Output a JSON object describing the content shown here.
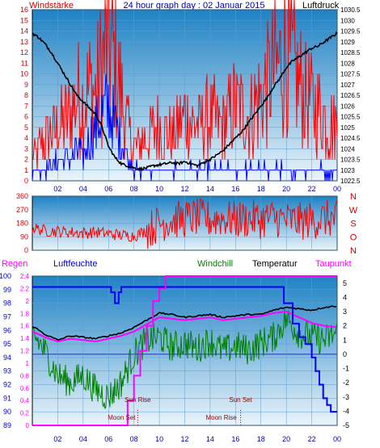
{
  "header": {
    "left_label": "Windstärke",
    "title": "24 hour graph day : 02 Januar 2015",
    "right_label": "Luftdruck"
  },
  "colors": {
    "background_top": "#1f82c4",
    "background_bottom": "#eaf4fb",
    "wind_speed": "#ff0000",
    "gust": "#0000ff",
    "pressure": "#000000",
    "wind_direction": "#ff0000",
    "humidity": "#0000ff",
    "rain": "#ff00ff",
    "temperature": "#000000",
    "windchill": "#008000",
    "dewpoint": "#ff00ff",
    "markers": "#990000"
  },
  "chart_data": [
    {
      "type": "line",
      "panel": "wind_pressure",
      "x_ticks": [
        "02",
        "04",
        "06",
        "08",
        "10",
        "12",
        "14",
        "16",
        "18",
        "20",
        "22",
        "00"
      ],
      "left_axis_label": "Windstärke",
      "left_ticks": [
        "0",
        "1",
        "2",
        "3",
        "4",
        "5",
        "6",
        "7",
        "8",
        "9",
        "10",
        "11",
        "12",
        "13",
        "14",
        "15",
        "16"
      ],
      "right_axis_label": "Luftdruck",
      "right_ticks": [
        "1022.5",
        "1023",
        "1023.5",
        "1024",
        "1024.5",
        "1025",
        "1025.5",
        "1026",
        "1026.5",
        "1027",
        "1027.5",
        "1028",
        "1028.5",
        "1029",
        "1029.5",
        "1030",
        "1030.5"
      ],
      "ylim_left": [
        0,
        16
      ],
      "ylim_right": [
        1022.5,
        1030.5
      ],
      "pressure_series": {
        "x": [
          0,
          0.5,
          1,
          1.5,
          2,
          2.5,
          3,
          3.5,
          4,
          4.5,
          5,
          5.5,
          6,
          6.5,
          7,
          7.5,
          8,
          8.5,
          9,
          9.5,
          10,
          10.5,
          11,
          11.5,
          12,
          12.5,
          13,
          13.5,
          14,
          14.5,
          15,
          15.5,
          16,
          16.5,
          17,
          17.5,
          18,
          18.5,
          19,
          19.5,
          20,
          20.5,
          21,
          21.5,
          22,
          22.5,
          23,
          23.5,
          24
        ],
        "values": [
          1029.4,
          1029.2,
          1028.9,
          1028.5,
          1028.0,
          1027.5,
          1027.0,
          1026.5,
          1026.2,
          1025.9,
          1025.6,
          1025.0,
          1024.1,
          1023.6,
          1023.3,
          1023.2,
          1023.1,
          1023.05,
          1023.1,
          1023.2,
          1023.25,
          1023.3,
          1023.35,
          1023.3,
          1023.4,
          1023.3,
          1023.2,
          1023.35,
          1023.5,
          1023.7,
          1023.9,
          1024.2,
          1024.5,
          1024.8,
          1025.2,
          1025.6,
          1026.0,
          1026.4,
          1026.9,
          1027.3,
          1027.8,
          1028.1,
          1028.3,
          1028.5,
          1028.7,
          1028.8,
          1029.0,
          1029.2,
          1029.4
        ]
      },
      "wind_speed_series": {
        "x": [
          0,
          1,
          2,
          3,
          3.5,
          4,
          4.5,
          5,
          5.5,
          6,
          6.5,
          7,
          7.5,
          8,
          9,
          10,
          11,
          12,
          13,
          14,
          15,
          16,
          17,
          18,
          19,
          20,
          21,
          22,
          23,
          24
        ],
        "values": [
          2,
          4,
          5,
          6,
          8,
          7,
          9,
          8,
          11,
          13,
          11,
          8,
          5,
          3,
          4,
          5,
          4,
          6,
          5,
          6,
          5,
          7,
          6,
          8,
          10,
          12,
          9,
          7,
          6,
          5
        ]
      },
      "gust_series": {
        "x": [
          0,
          1,
          2,
          3,
          3.5,
          4,
          4.5,
          5,
          5.5,
          6,
          6.5,
          7,
          7.5,
          8,
          9,
          10,
          11,
          12,
          13,
          14,
          15,
          16,
          17,
          18,
          19,
          20,
          21,
          22,
          23,
          24
        ],
        "values": [
          1,
          1,
          2,
          2,
          3,
          2,
          4,
          5,
          6,
          7,
          5,
          4,
          2,
          1,
          1,
          1,
          1,
          1,
          1,
          1,
          1,
          1,
          1,
          1,
          1,
          1,
          1,
          1,
          1,
          1
        ]
      }
    },
    {
      "type": "line",
      "panel": "wind_direction",
      "left_ticks": [
        "0",
        "90",
        "180",
        "270",
        "360"
      ],
      "right_labels": [
        "N",
        "W",
        "S",
        "O",
        "N"
      ],
      "ylim": [
        0,
        360
      ],
      "series": {
        "x": [
          0,
          1,
          2,
          3,
          4,
          5,
          6,
          7,
          8,
          9,
          10,
          11,
          12,
          13,
          14,
          15,
          16,
          17,
          18,
          19,
          20,
          21,
          22,
          23,
          24
        ],
        "values": [
          150,
          130,
          125,
          120,
          115,
          120,
          110,
          100,
          95,
          130,
          180,
          200,
          210,
          220,
          205,
          215,
          200,
          210,
          205,
          215,
          200,
          190,
          200,
          210,
          205
        ]
      }
    },
    {
      "type": "line",
      "panel": "humidity_temperature",
      "x_ticks": [
        "02",
        "04",
        "06",
        "08",
        "10",
        "12",
        "14",
        "16",
        "18",
        "20",
        "22",
        "00"
      ],
      "legend": [
        "Regen",
        "Luftfeuchte",
        "Windchill",
        "Temperatur",
        "Taupunkt"
      ],
      "rain_ticks": [
        "0",
        "0.2",
        "0.4",
        "0.6",
        "0.8",
        "1",
        "1.2",
        "1.4",
        "1.6",
        "1.8",
        "2",
        "2.2",
        "2.4"
      ],
      "humidity_ticks": [
        "89",
        "90",
        "91",
        "92",
        "93",
        "94",
        "95",
        "96",
        "97",
        "98",
        "99",
        "100"
      ],
      "temp_ticks": [
        "-5",
        "-4",
        "-3",
        "-2",
        "-1",
        "0",
        "1",
        "2",
        "3",
        "4",
        "5"
      ],
      "ylim_humidity": [
        89,
        100
      ],
      "ylim_temperature": [
        -5,
        5.5
      ],
      "ylim_rain": [
        0,
        2.4
      ],
      "humidity_series": {
        "x": [
          0,
          6,
          6.2,
          6.5,
          6.8,
          7,
          19.5,
          19.8,
          20.5,
          21,
          21.5,
          22,
          22.3,
          22.6,
          22.9,
          23.2,
          23.5,
          24
        ],
        "values": [
          99.2,
          99.2,
          98.8,
          98.0,
          98.8,
          99.2,
          99.2,
          98.0,
          96.5,
          95.5,
          95.0,
          94.0,
          93.0,
          92.0,
          91.0,
          90.5,
          90.0,
          90.0
        ]
      },
      "temperature_series": {
        "x": [
          0,
          1,
          2,
          3,
          4,
          5,
          6,
          7,
          8,
          9,
          10,
          11,
          12,
          13,
          14,
          15,
          16,
          17,
          18,
          19,
          20,
          21,
          22,
          23,
          24
        ],
        "values": [
          2.0,
          1.4,
          1.0,
          1.3,
          1.2,
          1.1,
          1.3,
          1.5,
          1.9,
          2.4,
          2.9,
          2.8,
          2.6,
          2.7,
          2.8,
          2.6,
          2.7,
          2.8,
          2.8,
          3.1,
          3.3,
          3.2,
          3.1,
          3.3,
          3.4
        ]
      },
      "dewpoint_series": {
        "x": [
          0,
          1,
          2,
          3,
          4,
          5,
          6,
          7,
          8,
          9,
          10,
          11,
          12,
          13,
          14,
          15,
          16,
          17,
          18,
          19,
          20,
          21,
          22,
          23,
          24
        ],
        "values": [
          1.6,
          1.2,
          0.9,
          1.1,
          1.0,
          0.9,
          1.1,
          1.3,
          1.6,
          2.1,
          2.6,
          2.5,
          2.4,
          2.5,
          2.6,
          2.4,
          2.5,
          2.6,
          2.7,
          2.9,
          3.0,
          2.6,
          2.2,
          2.0,
          1.9
        ]
      },
      "windchill_series": {
        "x": [
          0,
          1,
          2,
          3,
          4,
          5,
          6,
          7,
          8,
          9,
          10,
          11,
          12,
          13,
          14,
          15,
          16,
          17,
          18,
          19,
          20,
          21,
          22,
          23,
          24
        ],
        "values": [
          1.5,
          0.2,
          -1.5,
          -2.0,
          -1.5,
          -2.5,
          -3.0,
          -2.0,
          0.0,
          1.0,
          1.2,
          0.5,
          0.8,
          0.4,
          1.0,
          0.2,
          0.6,
          0.3,
          0.8,
          1.2,
          2.5,
          1.5,
          1.2,
          1.0,
          1.5
        ]
      },
      "rain_series": {
        "x": [
          0,
          7,
          7.5,
          8,
          8.5,
          9,
          9.5,
          10,
          10.5,
          24
        ],
        "values": [
          0,
          0,
          0.4,
          0.8,
          1.2,
          1.6,
          2.0,
          2.2,
          2.4,
          2.4
        ]
      },
      "annotations": [
        {
          "label": "Sun Rise",
          "x": 8.3
        },
        {
          "label": "Moon Set",
          "x": 8.3
        },
        {
          "label": "Sun Set",
          "x": 16.4
        },
        {
          "label": "Moon Rise",
          "x": 16.4
        }
      ]
    }
  ]
}
